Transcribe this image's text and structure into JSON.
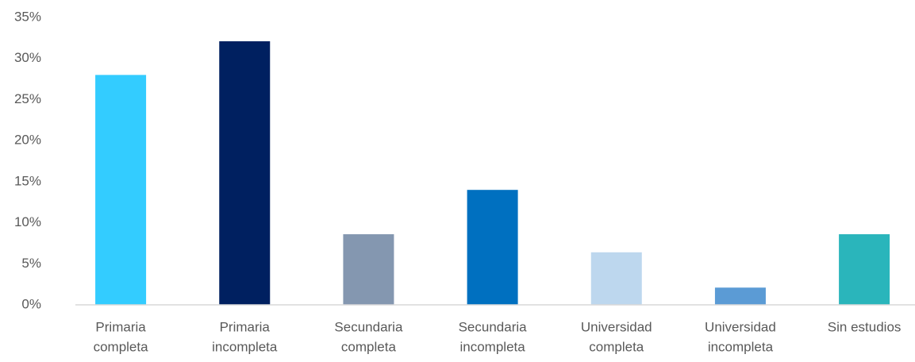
{
  "chart_data": {
    "type": "bar",
    "categories": [
      [
        "Primaria",
        "completa"
      ],
      [
        "Primaria",
        "incompleta"
      ],
      [
        "Secundaria",
        "completa"
      ],
      [
        "Secundaria",
        "incompleta"
      ],
      [
        "Universidad",
        "completa"
      ],
      [
        "Universidad",
        "incompleta"
      ],
      [
        "Sin estudios"
      ]
    ],
    "values": [
      28,
      32.1,
      8.6,
      14,
      6.4,
      2.1,
      8.6
    ],
    "colors": [
      "#33ccff",
      "#002060",
      "#8497b0",
      "#0070c0",
      "#bdd7ee",
      "#5b9bd5",
      "#2ab5bb"
    ],
    "ylim": [
      0,
      35
    ],
    "yticks": [
      {
        "value": 0,
        "label": "0%"
      },
      {
        "value": 5,
        "label": "5%"
      },
      {
        "value": 10,
        "label": "10%"
      },
      {
        "value": 15,
        "label": "15%"
      },
      {
        "value": 20,
        "label": "20%"
      },
      {
        "value": 25,
        "label": "25%"
      },
      {
        "value": 30,
        "label": "30%"
      },
      {
        "value": 35,
        "label": "35%"
      }
    ],
    "grid": false
  }
}
